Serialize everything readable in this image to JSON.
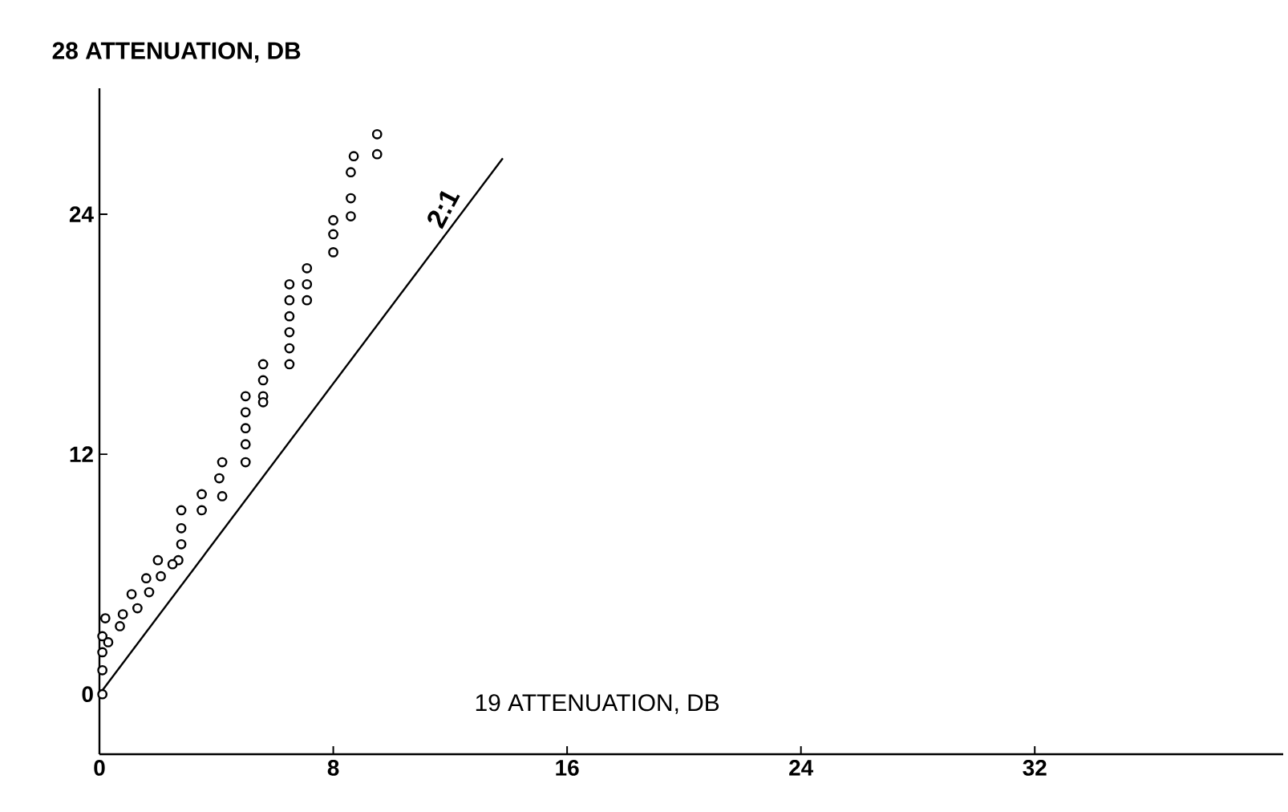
{
  "chart_data": {
    "type": "scatter",
    "ylabel": "28 ATTENUATION, DB",
    "xlabel": "19 ATTENUATION, DB",
    "xlim": [
      0,
      40.5
    ],
    "ylim": [
      -3,
      30.3
    ],
    "xticks": [
      0,
      8,
      16,
      24,
      32
    ],
    "yticks": [
      0,
      12,
      24
    ],
    "marker": "circle",
    "series": [
      {
        "color": "#000000",
        "x": [
          9.5,
          9.5,
          8.7,
          8.6,
          8.6,
          8.6,
          8.0,
          8.0,
          8.0,
          7.1,
          7.1,
          7.1,
          6.5,
          6.5,
          6.5,
          6.5,
          6.5,
          6.5,
          5.6,
          5.6,
          5.6,
          5.6,
          5.0,
          5.0,
          5.0,
          5.0,
          5.0,
          4.2,
          4.1,
          4.2,
          3.5,
          3.5,
          2.8,
          2.8,
          2.8,
          2.0,
          2.7,
          2.5,
          2.1,
          1.6,
          1.7,
          1.1,
          1.3,
          0.8,
          0.7,
          0.2,
          0.1,
          0.1,
          0.3,
          0.1,
          0.1
        ],
        "values": [
          28.0,
          27.0,
          26.9,
          26.1,
          24.8,
          23.9,
          23.7,
          23.0,
          22.1,
          21.3,
          20.5,
          19.7,
          20.5,
          19.7,
          18.9,
          18.1,
          17.3,
          16.5,
          16.5,
          15.7,
          14.9,
          14.6,
          14.9,
          14.1,
          13.3,
          12.5,
          11.6,
          11.6,
          10.8,
          9.9,
          10.0,
          9.2,
          9.2,
          8.3,
          7.5,
          6.7,
          6.7,
          6.5,
          5.9,
          5.8,
          5.1,
          5.0,
          4.3,
          4.0,
          3.4,
          3.8,
          2.9,
          2.1,
          2.6,
          1.2,
          0.0
        ]
      },
      {
        "type": "line",
        "color": "#000000",
        "marker": "none",
        "x": [
          0,
          13.8
        ],
        "values": [
          0,
          26.8
        ]
      }
    ],
    "annotations": [
      "2:1"
    ]
  }
}
